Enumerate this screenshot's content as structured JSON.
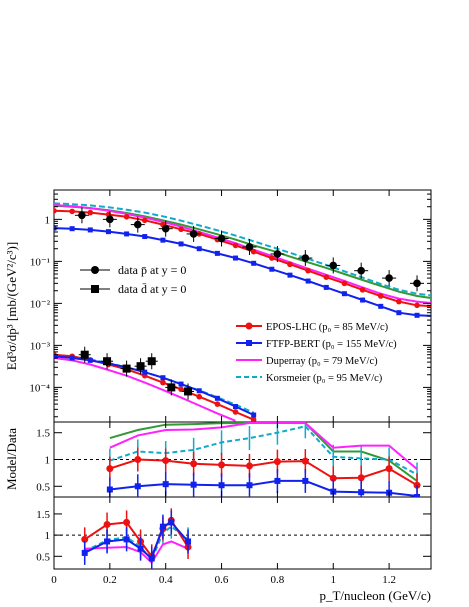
{
  "chart_data": {
    "type": "scatter",
    "x_label": "p_T/nucleon (GeV/c)",
    "x_range": [
      0,
      1.35
    ],
    "x_ticks": [
      0,
      0.2,
      0.4,
      0.6,
      0.8,
      1,
      1.2
    ],
    "x_tick_labels": [
      "0",
      "0.2",
      "0.4",
      "0.6",
      "0.8",
      "1",
      "1.2"
    ],
    "panels": [
      {
        "id": "spectrum",
        "y_label": "Ed³σ/dp³ [mb/(GeV²/c³)]",
        "y_scale": "log",
        "y_range": [
          1.5e-05,
          5
        ],
        "y_ticks": [
          0.0001,
          0.001,
          0.01,
          0.1,
          1
        ],
        "y_tick_labels": [
          "10⁻⁴",
          "10⁻³",
          "10⁻²",
          "10⁻¹",
          "1"
        ],
        "markers": {
          "pbar": {
            "name": "data p̄ at y = 0",
            "x": [
              0.1,
              0.2,
              0.3,
              0.4,
              0.5,
              0.6,
              0.7,
              0.8,
              0.9,
              1.0,
              1.1,
              1.2,
              1.3
            ],
            "y": [
              1.25,
              1.0,
              0.75,
              0.6,
              0.45,
              0.35,
              0.22,
              0.15,
              0.12,
              0.08,
              0.06,
              0.04,
              0.03
            ]
          },
          "dbar": {
            "name": "data d̄ at y = 0",
            "x": [
              0.11,
              0.19,
              0.26,
              0.31,
              0.35,
              0.42,
              0.48
            ],
            "y": [
              0.0006,
              0.00042,
              0.00028,
              0.00032,
              0.00042,
              0.0001,
              8e-05
            ]
          }
        },
        "models": {
          "epos": {
            "name": "EPOS-LHC (p₀ = 85 MeV/c)",
            "color": "#ee1111",
            "pbar": [
              1.6,
              1.55,
              1.45,
              1.3,
              1.15,
              0.95,
              0.75,
              0.58,
              0.45,
              0.33,
              0.24,
              0.17,
              0.12,
              0.085,
              0.06,
              0.042,
              0.03,
              0.021,
              0.015,
              0.011,
              0.009,
              0.0085
            ],
            "dbar": [
              0.0006,
              0.00055,
              0.00045,
              0.00035,
              0.00027,
              0.00019,
              0.00013,
              9e-05,
              6e-05,
              4e-05,
              2.6e-05,
              1.7e-05
            ]
          },
          "ftfp": {
            "name": "FTFP-BERT (p₀ = 155 MeV/c)",
            "color": "#1122ee",
            "pbar": [
              0.62,
              0.6,
              0.56,
              0.51,
              0.45,
              0.39,
              0.32,
              0.26,
              0.2,
              0.155,
              0.12,
              0.09,
              0.065,
              0.047,
              0.034,
              0.024,
              0.017,
              0.012,
              0.0085,
              0.006,
              0.0052,
              0.005
            ],
            "dbar": [
              0.00055,
              0.0005,
              0.00044,
              0.00037,
              0.0003,
              0.00023,
              0.00017,
              0.00012,
              8.3e-05,
              5.5e-05,
              3.5e-05,
              2.2e-05
            ]
          },
          "duperray": {
            "name": "Duperray (p₀ = 79 MeV/c)",
            "color": "#ff22ff",
            "pbar": [
              2.2,
              2.05,
              1.85,
              1.6,
              1.35,
              1.1,
              0.87,
              0.67,
              0.5,
              0.37,
              0.27,
              0.19,
              0.135,
              0.095,
              0.067,
              0.048,
              0.034,
              0.024,
              0.017,
              0.013,
              0.011,
              0.01
            ],
            "dbar": [
              0.0005,
              0.00044,
              0.00035,
              0.00026,
              0.00019,
              0.00013,
              8.7e-05,
              5.7e-05,
              3.7e-05,
              2.4e-05,
              1.6e-05
            ]
          },
          "korsmeier": {
            "name": "Korsmeier (p₀ = 95 MeV/c)",
            "color": "#11aacc",
            "pbar": [
              2.4,
              2.3,
              2.15,
              1.95,
              1.7,
              1.45,
              1.18,
              0.93,
              0.72,
              0.55,
              0.41,
              0.3,
              0.22,
              0.16,
              0.115,
              0.082,
              0.058,
              0.041,
              0.029,
              0.021,
              0.017,
              0.015
            ],
            "dbar": [
              0.00058,
              0.00053,
              0.00046,
              0.00038,
              0.0003,
              0.00023,
              0.00017,
              0.00012,
              8.5e-05,
              5.8e-05,
              3.9e-05,
              2.5e-05
            ]
          },
          "green": {
            "color": "#339933",
            "pbar": [
              2.1,
              2.0,
              1.85,
              1.65,
              1.42,
              1.18,
              0.95,
              0.75,
              0.58,
              0.44,
              0.33,
              0.24,
              0.18,
              0.13,
              0.095,
              0.07,
              0.05,
              0.036,
              0.026,
              0.019,
              0.015,
              0.013
            ]
          }
        }
      },
      {
        "id": "ratio_pbar",
        "y_label": "Model/Data",
        "y_range": [
          0.3,
          1.7
        ],
        "y_ticks": [
          0.5,
          1,
          1.5
        ],
        "y_tick_labels": [
          "0.5",
          "1",
          "1.5"
        ],
        "x": [
          0.2,
          0.3,
          0.4,
          0.5,
          0.6,
          0.7,
          0.8,
          0.9,
          1.0,
          1.1,
          1.2,
          1.3
        ],
        "series": {
          "epos": [
            0.83,
            1.0,
            0.98,
            0.92,
            0.9,
            0.88,
            0.96,
            0.97,
            0.65,
            0.66,
            0.83,
            0.52
          ],
          "ftfp": [
            0.44,
            0.5,
            0.54,
            0.53,
            0.52,
            0.52,
            0.6,
            0.6,
            0.4,
            0.39,
            0.38,
            0.3
          ],
          "duperray": [
            1.22,
            1.45,
            1.55,
            1.56,
            1.6,
            1.72,
            1.85,
            1.9,
            1.22,
            1.26,
            1.26,
            0.82
          ],
          "korsmeier": [
            0.98,
            1.15,
            1.12,
            1.18,
            1.32,
            1.4,
            1.5,
            1.62,
            1.05,
            1.02,
            1.0,
            0.72
          ],
          "green": [
            1.4,
            1.55,
            1.65,
            1.66,
            1.68,
            1.8,
            1.95,
            2.0,
            1.15,
            1.15,
            0.98,
            0.6
          ]
        }
      },
      {
        "id": "ratio_dbar",
        "y_range": [
          0.2,
          1.9
        ],
        "y_ticks": [
          0.5,
          1,
          1.5
        ],
        "y_tick_labels": [
          "0.5",
          "1",
          "1.5"
        ],
        "x": [
          0.11,
          0.19,
          0.26,
          0.31,
          0.35,
          0.39,
          0.42,
          0.48
        ],
        "series": {
          "epos": [
            0.9,
            1.25,
            1.3,
            0.85,
            0.5,
            1.15,
            1.35,
            0.72
          ],
          "ftfp": [
            0.58,
            0.85,
            0.9,
            0.68,
            0.45,
            1.2,
            1.3,
            0.85
          ],
          "duperray": [
            0.68,
            0.7,
            0.72,
            0.6,
            0.35,
            0.78,
            0.85,
            0.68
          ],
          "korsmeier": [
            0.62,
            0.88,
            0.95,
            0.72,
            0.42,
            1.05,
            1.2,
            0.9
          ]
        }
      }
    ]
  }
}
